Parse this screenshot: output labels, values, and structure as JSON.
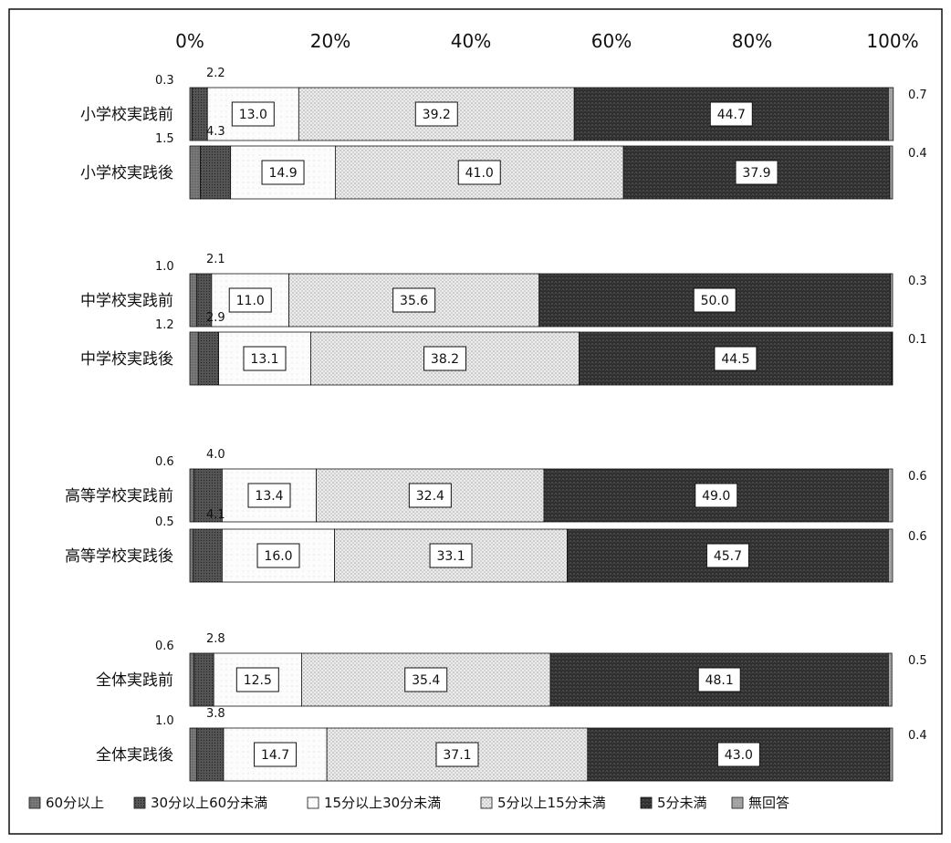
{
  "chart_data": {
    "type": "bar",
    "stacked": true,
    "orientation": "horizontal",
    "xlim": [
      0,
      100
    ],
    "x_ticks": [
      "0%",
      "20%",
      "40%",
      "60%",
      "80%",
      "100%"
    ],
    "categories": [
      "小学校実践前",
      "小学校実践後",
      "中学校実践前",
      "中学校実践後",
      "高等学校実践前",
      "高等学校実践後",
      "全体実践前",
      "全体実践後"
    ],
    "series": [
      {
        "name": "60分以上",
        "values": [
          0.3,
          1.5,
          1.0,
          1.2,
          0.6,
          0.5,
          0.6,
          1.0
        ]
      },
      {
        "name": "30分以上60分未満",
        "values": [
          2.2,
          4.3,
          2.1,
          2.9,
          4.0,
          4.1,
          2.8,
          3.8
        ]
      },
      {
        "name": "15分以上30分未満",
        "values": [
          13.0,
          14.9,
          11.0,
          13.1,
          13.4,
          16.0,
          12.5,
          14.7
        ]
      },
      {
        "name": "5分以上15分未満",
        "values": [
          39.2,
          41.0,
          35.6,
          38.2,
          32.4,
          33.1,
          35.4,
          37.1
        ]
      },
      {
        "name": "5分未満",
        "values": [
          44.7,
          37.9,
          50.0,
          44.5,
          49.0,
          45.7,
          48.1,
          43.0
        ]
      },
      {
        "name": "無回答",
        "values": [
          0.7,
          0.4,
          0.3,
          0.1,
          0.6,
          0.6,
          0.5,
          0.4
        ]
      }
    ],
    "value_labels": {
      "before_bar_top": [
        "0.3",
        "1.5",
        "1.0",
        "1.2",
        "0.6",
        "0.5",
        "0.6",
        "1.0"
      ],
      "before_bar_top_30": [
        "2.2",
        "4.3",
        "2.1",
        "2.9",
        "4.0",
        "4.1",
        "2.8",
        "3.8"
      ],
      "boxed": [
        [
          "13.0",
          "39.2",
          "44.7"
        ],
        [
          "14.9",
          "41.0",
          "37.9"
        ],
        [
          "11.0",
          "35.6",
          "50.0"
        ],
        [
          "13.1",
          "38.2",
          "44.5"
        ],
        [
          "13.4",
          "32.4",
          "49.0"
        ],
        [
          "16.0",
          "33.1",
          "45.7"
        ],
        [
          "12.5",
          "35.4",
          "48.1"
        ],
        [
          "14.7",
          "37.1",
          "43.0"
        ]
      ],
      "right": [
        "0.7",
        "0.4",
        "0.3",
        "0.1",
        "0.6",
        "0.6",
        "0.5",
        "0.4"
      ]
    },
    "legend": [
      "60分以上",
      "30分以上60分未満",
      "15分以上30分未満",
      "5分以上15分未満",
      "5分未満",
      "無回答"
    ],
    "legend_position": "bottom",
    "colors": {
      "60分以上": "#6f6f6f",
      "30分以上60分未満": "#555555",
      "15分以上30分未満": "#fafafa",
      "5分以上15分未満": "#dcdcdc",
      "5分未満": "#3a3a3a",
      "無回答": "#9a9a9a"
    }
  }
}
